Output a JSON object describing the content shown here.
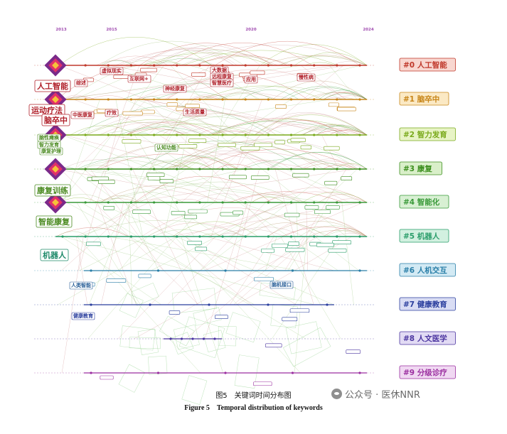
{
  "years": [
    "2013",
    "2015",
    "2020",
    "2024"
  ],
  "clusters": [
    {
      "label": "#0 人工智能",
      "color": "#c0392b",
      "bg": "#f8d7d0"
    },
    {
      "label": "#1 脑卒中",
      "color": "#c8861a",
      "bg": "#fbe9c4"
    },
    {
      "label": "#2 智力发育",
      "color": "#7aaa1c",
      "bg": "#e8f4c6"
    },
    {
      "label": "#3 康复",
      "color": "#3c8f1e",
      "bg": "#d9efc9"
    },
    {
      "label": "#4 智能化",
      "color": "#3a9a3a",
      "bg": "#d8f0d3"
    },
    {
      "label": "#5 机器人",
      "color": "#2a9d6a",
      "bg": "#d2f0e0"
    },
    {
      "label": "#6 人机交互",
      "color": "#2a7fa8",
      "bg": "#d3eaf4"
    },
    {
      "label": "#7 健康教育",
      "color": "#2b3f9e",
      "bg": "#d9ddf4"
    },
    {
      "label": "#8 人文医学",
      "color": "#4b35a0",
      "bg": "#e2dbf4"
    },
    {
      "label": "#9 分级诊疗",
      "color": "#9b2fa0",
      "bg": "#f0d8f2"
    }
  ],
  "big_keywords": [
    {
      "text": "人工智能",
      "color": "#b0202a"
    },
    {
      "text": "运动疗法",
      "color": "#b0202a"
    },
    {
      "text": "脑卒中",
      "color": "#b0202a"
    },
    {
      "text": "康复训练",
      "color": "#4a8a20"
    },
    {
      "text": "智能康复",
      "color": "#4a8a20"
    },
    {
      "text": "机器人",
      "color": "#1f8a6a"
    }
  ],
  "mid_keywords": [
    {
      "text": "综述",
      "color": "#b0202a"
    },
    {
      "text": "大数据",
      "color": "#b0202a"
    },
    {
      "text": "远程康复",
      "color": "#b0202a"
    },
    {
      "text": "智慧医疗",
      "color": "#b0202a"
    },
    {
      "text": "应用",
      "color": "#b0202a"
    },
    {
      "text": "慢性病",
      "color": "#b0202a"
    },
    {
      "text": "虚拟现实",
      "color": "#b0202a"
    },
    {
      "text": "互联网+",
      "color": "#b0202a"
    },
    {
      "text": "神经康复",
      "color": "#b0202a"
    },
    {
      "text": "生活质量",
      "color": "#b0202a"
    },
    {
      "text": "中医康复",
      "color": "#b0202a"
    },
    {
      "text": "疗效",
      "color": "#b0202a"
    },
    {
      "text": "脑性瘫痪",
      "color": "#4a8a20"
    },
    {
      "text": "智力发育",
      "color": "#4a8a20"
    },
    {
      "text": "康复护理",
      "color": "#4a8a20"
    },
    {
      "text": "认知功能",
      "color": "#4a8a20"
    },
    {
      "text": "人类智能",
      "color": "#2a5f98"
    },
    {
      "text": "脑机接口",
      "color": "#2a5f98"
    },
    {
      "text": "健康教育",
      "color": "#2b3f9e"
    }
  ],
  "caption": {
    "zh": "图5　关键词时间分布图",
    "en": "Figure 5　Temporal distribution of keywords"
  },
  "watermark": "公众号 · 医休NNR"
}
